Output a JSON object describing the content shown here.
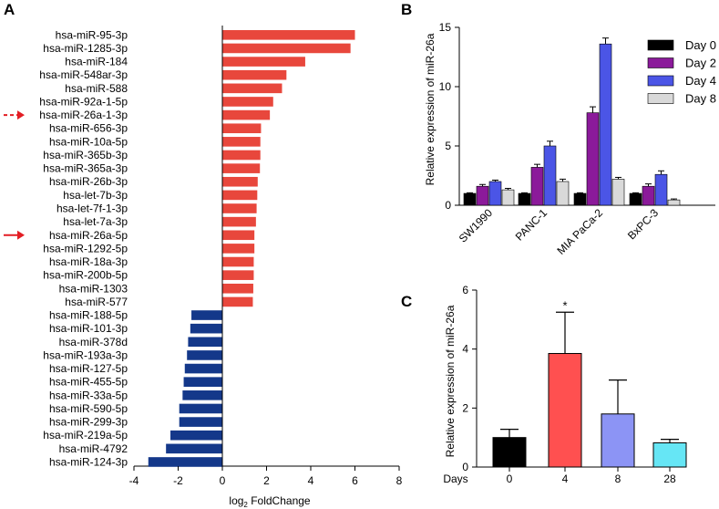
{
  "panel_letters": {
    "a": "A",
    "b": "B",
    "c": "C"
  },
  "colors": {
    "up": "#E8473C",
    "down": "#14388A",
    "arrow": "#E31E24",
    "day0": "#000000",
    "day2": "#8B1A9A",
    "day4": "#4B55E6",
    "day8": "#D9D9D9",
    "c_day0": "#000000",
    "c_day4": "#FF5050",
    "c_day8": "#8C94F5",
    "c_day28": "#66E6F5"
  },
  "chart_data": [
    {
      "panel": "A",
      "type": "bar",
      "orientation": "horizontal",
      "title": "",
      "xlabel_main": "log",
      "xlabel_sub": "2",
      "xlabel_rest": " FoldChange",
      "xlim": [
        -4,
        8
      ],
      "xticks": [
        "-4",
        "-2",
        "0",
        "2",
        "4",
        "6",
        "8"
      ],
      "categories": [
        "hsa-miR-95-3p",
        "hsa-miR-1285-3p",
        "hsa-miR-184",
        "hsa-miR-548ar-3p",
        "hsa-miR-588",
        "hsa-miR-92a-1-5p",
        "hsa-miR-26a-1-3p",
        "hsa-miR-656-3p",
        "hsa-miR-10a-5p",
        "hsa-miR-365b-3p",
        "hsa-miR-365a-3p",
        "hsa-miR-26b-3p",
        "hsa-let-7b-3p",
        "hsa-let-7f-1-3p",
        "hsa-let-7a-3p",
        "hsa-miR-26a-5p",
        "hsa-miR-1292-5p",
        "hsa-miR-18a-3p",
        "hsa-miR-200b-5p",
        "hsa-miR-1303",
        "hsa-miR-577",
        "hsa-miR-188-5p",
        "hsa-miR-101-3p",
        "hsa-miR-378d",
        "hsa-miR-193a-3p",
        "hsa-miR-127-5p",
        "hsa-miR-455-5p",
        "hsa-miR-33a-5p",
        "hsa-miR-590-5p",
        "hsa-miR-299-3p",
        "hsa-miR-219a-5p",
        "hsa-miR-4792",
        "hsa-miR-124-3p"
      ],
      "values": [
        6.0,
        5.8,
        3.75,
        2.9,
        2.7,
        2.3,
        2.15,
        1.75,
        1.72,
        1.72,
        1.7,
        1.6,
        1.58,
        1.55,
        1.52,
        1.45,
        1.45,
        1.42,
        1.42,
        1.4,
        1.38,
        -1.4,
        -1.45,
        -1.55,
        -1.6,
        -1.7,
        -1.75,
        -1.8,
        -1.95,
        -1.95,
        -2.35,
        -2.55,
        -3.35
      ],
      "arrows": [
        {
          "category": "hsa-miR-26a-1-3p",
          "style": "dashed"
        },
        {
          "category": "hsa-miR-26a-5p",
          "style": "solid"
        }
      ]
    },
    {
      "panel": "B",
      "type": "bar",
      "title": "",
      "ylabel": "Relative expression of miR-26a",
      "ylim": [
        0,
        15
      ],
      "yticks": [
        "0",
        "5",
        "10",
        "15"
      ],
      "categories": [
        "SW1990",
        "PANC-1",
        "MIA PaCa-2",
        "BxPC-3"
      ],
      "series": [
        {
          "name": "Day 0",
          "values": [
            1.0,
            1.0,
            1.0,
            1.0
          ],
          "errors": [
            0.05,
            0.05,
            0.05,
            0.05
          ]
        },
        {
          "name": "Day 2",
          "values": [
            1.6,
            3.2,
            7.8,
            1.6
          ],
          "errors": [
            0.15,
            0.25,
            0.5,
            0.2
          ]
        },
        {
          "name": "Day 4",
          "values": [
            2.0,
            5.0,
            13.6,
            2.6
          ],
          "errors": [
            0.12,
            0.4,
            0.5,
            0.3
          ]
        },
        {
          "name": "Day 8",
          "values": [
            1.3,
            2.0,
            2.2,
            0.45
          ],
          "errors": [
            0.12,
            0.2,
            0.15,
            0.08
          ]
        }
      ],
      "legend_position": "top-right"
    },
    {
      "panel": "C",
      "type": "bar",
      "title": "",
      "ylabel": "Relative expression of miR-26a",
      "x_axis_title": "Days",
      "ylim": [
        0,
        6
      ],
      "yticks": [
        "0",
        "2",
        "4",
        "6"
      ],
      "categories": [
        "0",
        "4",
        "8",
        "28"
      ],
      "values": [
        1.0,
        3.85,
        1.8,
        0.82
      ],
      "errors": [
        0.28,
        1.4,
        1.15,
        0.12
      ],
      "annotations": [
        {
          "category": "4",
          "text": "*"
        }
      ]
    }
  ]
}
